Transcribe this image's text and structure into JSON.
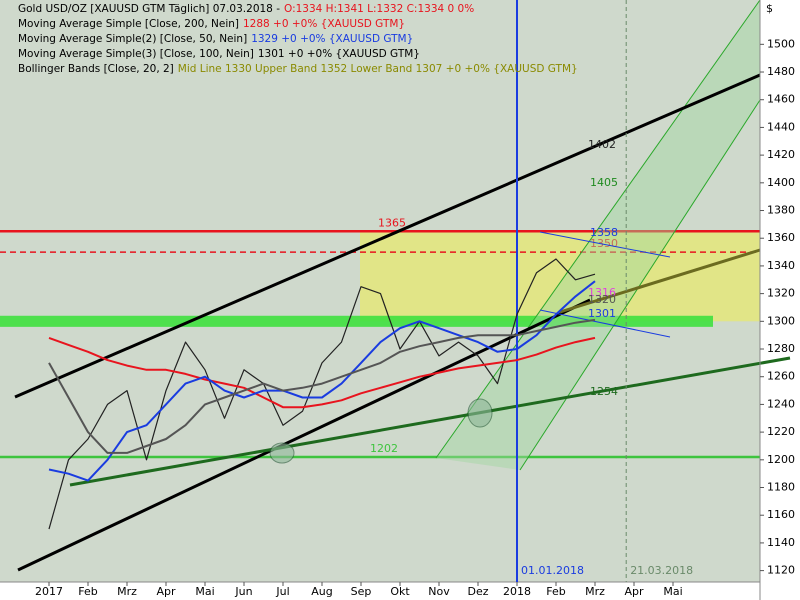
{
  "chart_data": {
    "type": "line",
    "categories": [
      "2017",
      null,
      "Feb",
      null,
      "Mrz",
      null,
      "Apr",
      null,
      "Mai",
      null,
      "Jun",
      null,
      "Jul",
      null,
      "Aug",
      null,
      "Sep",
      null,
      "Okt",
      null,
      "Nov",
      null,
      "Dez",
      null,
      "2018",
      null,
      "Feb",
      null,
      "Mrz",
      null,
      "Apr",
      null,
      "Mai",
      null
    ],
    "series": [
      {
        "name": "Gold USD/OZ [XAUUSD GTM  Täglich] 07.03.2018 -",
        "info": "O:1334 H:1341 L:1332 C:1334 0 0%",
        "color": "#222222",
        "info_color": "#e8141e",
        "values": [
          1150,
          1200,
          1215,
          1240,
          1250,
          1200,
          1250,
          1285,
          1265,
          1230,
          1265,
          1255,
          1225,
          1235,
          1270,
          1285,
          1325,
          1320,
          1280,
          1300,
          1275,
          1285,
          1275,
          1255,
          1305,
          1335,
          1345,
          1330,
          1334,
          null,
          null,
          null,
          null,
          null
        ]
      },
      {
        "name": "Moving Average Simple [Close, 200, Nein]",
        "info": "1288 +0 +0% {XAUUSD GTM}",
        "color": "#e8141e",
        "info_color": "#e8141e",
        "values": [
          1288,
          1283,
          1278,
          1272,
          1268,
          1265,
          1265,
          1262,
          1258,
          1255,
          1252,
          1245,
          1238,
          1238,
          1240,
          1243,
          1248,
          1252,
          1256,
          1260,
          1263,
          1266,
          1268,
          1270,
          1272,
          1276,
          1281,
          1285,
          1288,
          null,
          null,
          null,
          null,
          null
        ]
      },
      {
        "name": "Moving Average Simple(2) [Close, 50, Nein]",
        "info": "1329 +0 +0% {XAUUSD GTM}",
        "color": "#1a3ce0",
        "info_color": "#1a3ce0",
        "values": [
          1193,
          1190,
          1185,
          1200,
          1220,
          1225,
          1240,
          1255,
          1260,
          1250,
          1245,
          1250,
          1250,
          1245,
          1245,
          1255,
          1270,
          1285,
          1295,
          1300,
          1295,
          1290,
          1285,
          1278,
          1280,
          1290,
          1305,
          1318,
          1329,
          null,
          null,
          null,
          null,
          null
        ]
      },
      {
        "name": "Moving Average Simple(3) [Close, 100, Nein]",
        "info": "1301 +0 +0% {XAUUSD GTM}",
        "color": "#555555",
        "info_color": "#000000",
        "values": [
          1270,
          1245,
          1220,
          1205,
          1205,
          1210,
          1215,
          1225,
          1240,
          1245,
          1250,
          1255,
          1250,
          1252,
          1255,
          1260,
          1265,
          1270,
          1278,
          1282,
          1285,
          1288,
          1290,
          1290,
          1290,
          1293,
          1296,
          1299,
          1301,
          null,
          null,
          null,
          null,
          null
        ]
      }
    ],
    "bollinger": {
      "name": "Bollinger Bands [Close, 20, 2]",
      "info": "Mid Line 1330 Upper Band 1352 Lower Band 1307 +0 +0% {XAUUSD GTM}",
      "color": "#8a8a00"
    },
    "hlines": [
      {
        "value": 1365,
        "color": "#e8141e",
        "style": "solid"
      },
      {
        "value": 1350,
        "color": "#e8141e",
        "style": "dashed"
      },
      {
        "value": 1202,
        "color": "#3ec43e",
        "style": "solid"
      }
    ],
    "zones": [
      {
        "from": 1300,
        "to": 1365,
        "color": "#e4e67a"
      },
      {
        "from": 1296,
        "to": 1304,
        "color": "#3fe03f"
      }
    ],
    "price_labels": [
      1402,
      1405,
      1358,
      1316,
      1320,
      1301,
      1254
    ],
    "vlines": [
      {
        "label": "01.01.2018",
        "color": "#1a3ce0",
        "style": "solid"
      },
      {
        "label": "21.03.2018",
        "color": "#6a8a6a",
        "style": "dashed"
      }
    ],
    "axis_unit": "$",
    "ylim": [
      1106,
      1532
    ],
    "yticks": [
      1120,
      1140,
      1160,
      1180,
      1200,
      1220,
      1240,
      1260,
      1280,
      1300,
      1320,
      1340,
      1360,
      1380,
      1400,
      1420,
      1440,
      1460,
      1480,
      1500
    ],
    "grid": false
  }
}
